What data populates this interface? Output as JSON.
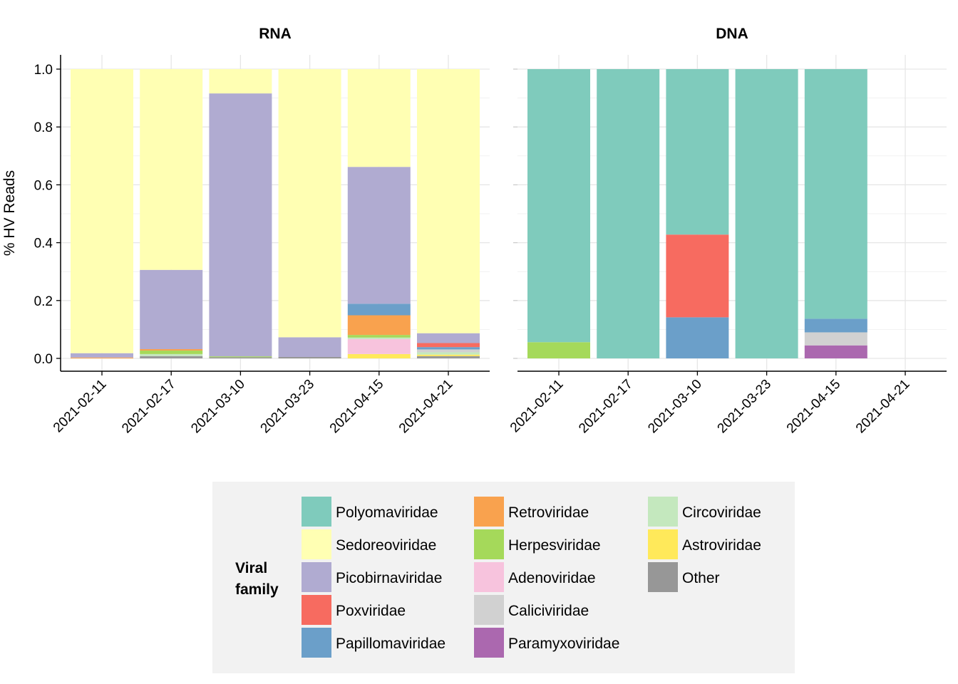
{
  "chart_data": {
    "type": "bar",
    "stacked": true,
    "ylabel": "% HV Reads",
    "ylim": [
      0,
      1.0
    ],
    "yticks": [
      "0.0",
      "0.2",
      "0.4",
      "0.6",
      "0.8",
      "1.0"
    ],
    "categories": [
      "2021-02-11",
      "2021-02-17",
      "2021-03-10",
      "2021-03-23",
      "2021-04-15",
      "2021-04-21"
    ],
    "grid": true,
    "legend_position": "bottom",
    "legend": {
      "title": "Viral family",
      "entries": [
        {
          "name": "Polyomaviridae",
          "color": "#7fcbbc"
        },
        {
          "name": "Sedoreoviridae",
          "color": "#ffffb3"
        },
        {
          "name": "Picobirnaviridae",
          "color": "#b0abd1"
        },
        {
          "name": "Poxviridae",
          "color": "#f76b60"
        },
        {
          "name": "Papillomaviridae",
          "color": "#6b9fc9"
        },
        {
          "name": "Retroviridae",
          "color": "#f9a24e"
        },
        {
          "name": "Herpesviridae",
          "color": "#a5d95a"
        },
        {
          "name": "Adenoviridae",
          "color": "#f7c3dd"
        },
        {
          "name": "Caliciviridae",
          "color": "#d1d1d1"
        },
        {
          "name": "Paramyxoviridae",
          "color": "#ab68af"
        },
        {
          "name": "Circoviridae",
          "color": "#c4e8be"
        },
        {
          "name": "Astroviridae",
          "color": "#ffe95a"
        },
        {
          "name": "Other",
          "color": "#979797"
        }
      ]
    },
    "panels": [
      {
        "title": "RNA",
        "bars": [
          {
            "category": "2021-02-11",
            "segments": [
              {
                "family": "Retroviridae",
                "value": 0.003
              },
              {
                "family": "Picobirnaviridae",
                "value": 0.015
              },
              {
                "family": "Sedoreoviridae",
                "value": 0.982
              }
            ]
          },
          {
            "category": "2021-02-17",
            "segments": [
              {
                "family": "Other",
                "value": 0.008
              },
              {
                "family": "Circoviridae",
                "value": 0.007
              },
              {
                "family": "Herpesviridae",
                "value": 0.012
              },
              {
                "family": "Retroviridae",
                "value": 0.005
              },
              {
                "family": "Picobirnaviridae",
                "value": 0.274
              },
              {
                "family": "Sedoreoviridae",
                "value": 0.694
              }
            ]
          },
          {
            "category": "2021-03-10",
            "segments": [
              {
                "family": "Other",
                "value": 0.004
              },
              {
                "family": "Herpesviridae",
                "value": 0.003
              },
              {
                "family": "Picobirnaviridae",
                "value": 0.909
              },
              {
                "family": "Sedoreoviridae",
                "value": 0.084
              }
            ]
          },
          {
            "category": "2021-03-23",
            "segments": [
              {
                "family": "Other",
                "value": 0.005
              },
              {
                "family": "Picobirnaviridae",
                "value": 0.068
              },
              {
                "family": "Sedoreoviridae",
                "value": 0.927
              }
            ]
          },
          {
            "category": "2021-04-15",
            "segments": [
              {
                "family": "Astroviridae",
                "value": 0.015
              },
              {
                "family": "Adenoviridae",
                "value": 0.052
              },
              {
                "family": "Circoviridae",
                "value": 0.005
              },
              {
                "family": "Herpesviridae",
                "value": 0.009
              },
              {
                "family": "Retroviridae",
                "value": 0.068
              },
              {
                "family": "Papillomaviridae",
                "value": 0.04
              },
              {
                "family": "Picobirnaviridae",
                "value": 0.473
              },
              {
                "family": "Sedoreoviridae",
                "value": 0.338
              }
            ]
          },
          {
            "category": "2021-04-21",
            "segments": [
              {
                "family": "Other",
                "value": 0.008
              },
              {
                "family": "Astroviridae",
                "value": 0.005
              },
              {
                "family": "Circoviridae",
                "value": 0.008
              },
              {
                "family": "Caliciviridae",
                "value": 0.01
              },
              {
                "family": "Papillomaviridae",
                "value": 0.008
              },
              {
                "family": "Poxviridae",
                "value": 0.014
              },
              {
                "family": "Picobirnaviridae",
                "value": 0.034
              },
              {
                "family": "Sedoreoviridae",
                "value": 0.913
              }
            ]
          }
        ]
      },
      {
        "title": "DNA",
        "bars": [
          {
            "category": "2021-02-11",
            "segments": [
              {
                "family": "Herpesviridae",
                "value": 0.056
              },
              {
                "family": "Polyomaviridae",
                "value": 0.944
              }
            ]
          },
          {
            "category": "2021-02-17",
            "segments": [
              {
                "family": "Polyomaviridae",
                "value": 1.0
              }
            ]
          },
          {
            "category": "2021-03-10",
            "segments": [
              {
                "family": "Papillomaviridae",
                "value": 0.142
              },
              {
                "family": "Poxviridae",
                "value": 0.286
              },
              {
                "family": "Polyomaviridae",
                "value": 0.572
              }
            ]
          },
          {
            "category": "2021-03-23",
            "segments": [
              {
                "family": "Polyomaviridae",
                "value": 1.0
              }
            ]
          },
          {
            "category": "2021-04-15",
            "segments": [
              {
                "family": "Paramyxoviridae",
                "value": 0.045
              },
              {
                "family": "Caliciviridae",
                "value": 0.045
              },
              {
                "family": "Papillomaviridae",
                "value": 0.047
              },
              {
                "family": "Polyomaviridae",
                "value": 0.863
              }
            ]
          }
        ]
      }
    ]
  }
}
